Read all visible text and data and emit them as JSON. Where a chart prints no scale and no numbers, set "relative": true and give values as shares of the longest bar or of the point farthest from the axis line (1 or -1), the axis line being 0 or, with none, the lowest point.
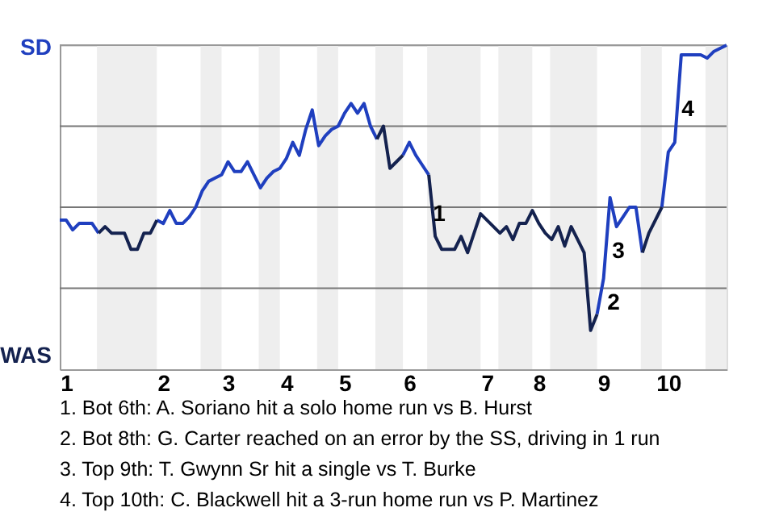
{
  "chart_data": {
    "type": "line",
    "relative": true,
    "categories": [
      null,
      "1",
      null,
      null,
      null,
      null,
      null,
      null,
      null,
      null,
      null,
      null,
      null,
      null,
      null,
      null,
      "2",
      null,
      null,
      null,
      null,
      null,
      null,
      null,
      null,
      null,
      "3",
      null,
      null,
      null,
      null,
      null,
      null,
      null,
      null,
      "4",
      null,
      null,
      null,
      null,
      null,
      null,
      null,
      null,
      "5",
      null,
      null,
      null,
      null,
      null,
      null,
      null,
      null,
      null,
      "6",
      null,
      null,
      null,
      null,
      null,
      null,
      null,
      null,
      null,
      null,
      null,
      "7",
      null,
      null,
      null,
      null,
      null,
      null,
      null,
      "8",
      null,
      null,
      null,
      null,
      null,
      null,
      null,
      null,
      null,
      "9",
      null,
      null,
      null,
      null,
      null,
      null,
      null,
      null,
      null,
      "10",
      null,
      null,
      null,
      null,
      null,
      null,
      null,
      null,
      null
    ],
    "grid": "y",
    "line_style": "solid",
    "series": [
      {
        "color": "#1f3fbf",
        "values": [
          0.46,
          0.46,
          0.43,
          0.45,
          0.45,
          0.45,
          0.42,
          null,
          null,
          null,
          null,
          null,
          null,
          null,
          null,
          0.46,
          0.45,
          0.49,
          0.45,
          0.45,
          0.47,
          0.5,
          0.55,
          0.58,
          0.59,
          0.6,
          0.64,
          0.61,
          0.61,
          0.64,
          0.6,
          0.56,
          0.59,
          0.61,
          0.62,
          0.65,
          0.7,
          0.66,
          0.74,
          0.8,
          0.69,
          0.72,
          0.74,
          0.75,
          0.79,
          0.82,
          0.79,
          0.82,
          0.75,
          0.71,
          null,
          null,
          null,
          0.66,
          0.7,
          0.66,
          0.63,
          0.6,
          null,
          null,
          null,
          null,
          null,
          null,
          null,
          null,
          null,
          null,
          null,
          null,
          null,
          null,
          null,
          null,
          null,
          null,
          null,
          null,
          null,
          null,
          null,
          null,
          null,
          0.17,
          0.28,
          0.53,
          0.44,
          0.47,
          0.5,
          0.5,
          0.36,
          null,
          null,
          0.5,
          0.67,
          0.7,
          0.97,
          0.97,
          0.97,
          0.97,
          0.96,
          0.98,
          0.99,
          1.0
        ]
      },
      {
        "color": "#14224f",
        "values": [
          null,
          null,
          null,
          null,
          null,
          null,
          0.42,
          0.44,
          0.42,
          0.42,
          0.42,
          0.37,
          0.37,
          0.42,
          0.42,
          0.46,
          null,
          null,
          null,
          null,
          null,
          null,
          null,
          null,
          null,
          null,
          null,
          null,
          null,
          null,
          null,
          null,
          null,
          null,
          null,
          null,
          null,
          null,
          null,
          null,
          null,
          null,
          null,
          null,
          null,
          null,
          null,
          null,
          null,
          0.71,
          0.75,
          0.62,
          0.64,
          0.66,
          null,
          null,
          null,
          0.6,
          0.41,
          0.37,
          0.37,
          0.37,
          0.41,
          0.36,
          0.42,
          0.48,
          0.46,
          0.44,
          0.42,
          0.44,
          0.4,
          0.45,
          0.45,
          0.49,
          0.45,
          0.42,
          0.4,
          0.44,
          0.38,
          0.44,
          0.4,
          0.36,
          0.12,
          0.17,
          null,
          null,
          null,
          null,
          null,
          null,
          0.36,
          0.42,
          0.46,
          0.5,
          null,
          null,
          null,
          null,
          null,
          null,
          null,
          null,
          null,
          null
        ]
      }
    ],
    "annotations": [
      "SD",
      "WAS",
      "1",
      "2",
      "3",
      "4",
      "1. Bot 6th: A. Soriano hit a solo home run vs B. Hurst",
      "2. Bot 8th: G. Carter reached on an error by the SS, driving in 1 run",
      "3. Top 9th: T. Gwynn Sr hit a single vs T. Burke",
      "4. Top 10th: C. Blackwell hit a 3-run home run vs P. Martinez"
    ]
  }
}
